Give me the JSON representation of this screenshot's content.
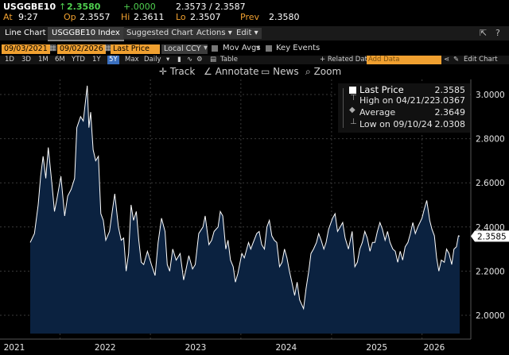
{
  "quote": {
    "ticker": "USGGBE10",
    "arrow": "↑",
    "last": "2.3580",
    "change": "+.0000",
    "bid_ask": "2.3573 / 2.3587",
    "time_label": "At",
    "time": "9:27",
    "open_label": "Op",
    "open": "2.3557",
    "high_label": "Hi",
    "high": "2.3611",
    "low_label": "Lo",
    "low": "2.3507",
    "prev_label": "Prev",
    "prev": "2.3580"
  },
  "menubar": {
    "chart_type": "Line Chart",
    "security": "USGGBE10 Index",
    "suggested": "Suggested Charts",
    "actions": "Actions",
    "edit": "Edit"
  },
  "inputs": {
    "start_date": "09/03/2021",
    "end_date": "09/02/2026",
    "field": "Last Price",
    "currency": "Local CCY",
    "mov_avgs": "Mov Avgs",
    "key_events": "Key Events"
  },
  "range": {
    "options": [
      "1D",
      "3D",
      "1M",
      "6M",
      "YTD",
      "1Y",
      "5Y",
      "Max"
    ],
    "selected": "5Y",
    "frequency": "Daily",
    "table": "Table",
    "related": "+ Related Dat",
    "add_data_placeholder": "Add Data",
    "edit_chart": "Edit Chart"
  },
  "tools": {
    "track": "Track",
    "annotate": "Annotate",
    "news": "News",
    "zoom": "Zoom"
  },
  "legend": {
    "last_label": "Last Price",
    "last_value": "2.3585",
    "high_label": "High on 04/21/22",
    "high_value": "3.0367",
    "avg_label": "Average",
    "avg_value": "2.3649",
    "low_label": "Low on 09/10/24",
    "low_value": "2.0308"
  },
  "colors": {
    "line": "#ffffff",
    "area": "#0b2240",
    "accent": "#f0a030",
    "up": "#4fd04f"
  },
  "chart_data": {
    "type": "area",
    "title": "",
    "ylim": [
      1.9,
      3.05
    ],
    "yticks": [
      "3.0000",
      "2.8000",
      "2.6000",
      "2.4000",
      "2.2000",
      "2.0000"
    ],
    "xticks": [
      "2021",
      "2022",
      "2023",
      "2024",
      "2025",
      "2026"
    ],
    "last_value_label": "2.3585",
    "grid": true,
    "series": [
      {
        "values": [
          [
            "2021-09-03",
            2.33
          ],
          [
            "2021-09-20",
            2.37
          ],
          [
            "2021-10-05",
            2.5
          ],
          [
            "2021-10-15",
            2.63
          ],
          [
            "2021-10-25",
            2.72
          ],
          [
            "2021-11-05",
            2.62
          ],
          [
            "2021-11-15",
            2.76
          ],
          [
            "2021-12-01",
            2.58
          ],
          [
            "2021-12-10",
            2.47
          ],
          [
            "2021-12-20",
            2.53
          ],
          [
            "2022-01-05",
            2.63
          ],
          [
            "2022-01-20",
            2.45
          ],
          [
            "2022-02-01",
            2.54
          ],
          [
            "2022-02-15",
            2.57
          ],
          [
            "2022-03-01",
            2.62
          ],
          [
            "2022-03-10",
            2.85
          ],
          [
            "2022-03-25",
            2.9
          ],
          [
            "2022-04-05",
            2.88
          ],
          [
            "2022-04-21",
            3.04
          ],
          [
            "2022-04-28",
            2.85
          ],
          [
            "2022-05-05",
            2.92
          ],
          [
            "2022-05-15",
            2.75
          ],
          [
            "2022-05-25",
            2.7
          ],
          [
            "2022-06-05",
            2.72
          ],
          [
            "2022-06-15",
            2.46
          ],
          [
            "2022-06-25",
            2.43
          ],
          [
            "2022-07-05",
            2.34
          ],
          [
            "2022-07-20",
            2.38
          ],
          [
            "2022-08-01",
            2.48
          ],
          [
            "2022-08-10",
            2.55
          ],
          [
            "2022-08-25",
            2.4
          ],
          [
            "2022-09-05",
            2.34
          ],
          [
            "2022-09-15",
            2.35
          ],
          [
            "2022-09-25",
            2.2
          ],
          [
            "2022-10-05",
            2.28
          ],
          [
            "2022-10-15",
            2.5
          ],
          [
            "2022-10-25",
            2.43
          ],
          [
            "2022-11-05",
            2.47
          ],
          [
            "2022-11-15",
            2.34
          ],
          [
            "2022-11-25",
            2.24
          ],
          [
            "2022-12-05",
            2.23
          ],
          [
            "2022-12-20",
            2.29
          ],
          [
            "2023-01-05",
            2.23
          ],
          [
            "2023-01-20",
            2.18
          ],
          [
            "2023-02-01",
            2.33
          ],
          [
            "2023-02-15",
            2.44
          ],
          [
            "2023-03-01",
            2.38
          ],
          [
            "2023-03-10",
            2.23
          ],
          [
            "2023-03-20",
            2.2
          ],
          [
            "2023-04-01",
            2.3
          ],
          [
            "2023-04-15",
            2.25
          ],
          [
            "2023-05-01",
            2.28
          ],
          [
            "2023-05-15",
            2.16
          ],
          [
            "2023-05-25",
            2.21
          ],
          [
            "2023-06-05",
            2.27
          ],
          [
            "2023-06-20",
            2.21
          ],
          [
            "2023-07-01",
            2.23
          ],
          [
            "2023-07-15",
            2.37
          ],
          [
            "2023-08-01",
            2.4
          ],
          [
            "2023-08-10",
            2.45
          ],
          [
            "2023-08-25",
            2.32
          ],
          [
            "2023-09-05",
            2.34
          ],
          [
            "2023-09-15",
            2.38
          ],
          [
            "2023-10-01",
            2.4
          ],
          [
            "2023-10-10",
            2.47
          ],
          [
            "2023-10-20",
            2.45
          ],
          [
            "2023-11-01",
            2.3
          ],
          [
            "2023-11-10",
            2.34
          ],
          [
            "2023-11-20",
            2.25
          ],
          [
            "2023-12-01",
            2.22
          ],
          [
            "2023-12-10",
            2.15
          ],
          [
            "2023-12-20",
            2.19
          ],
          [
            "2024-01-05",
            2.28
          ],
          [
            "2024-01-15",
            2.26
          ],
          [
            "2024-02-01",
            2.33
          ],
          [
            "2024-02-10",
            2.3
          ],
          [
            "2024-02-20",
            2.33
          ],
          [
            "2024-03-05",
            2.37
          ],
          [
            "2024-03-15",
            2.38
          ],
          [
            "2024-03-25",
            2.32
          ],
          [
            "2024-04-05",
            2.3
          ],
          [
            "2024-04-15",
            2.4
          ],
          [
            "2024-04-25",
            2.43
          ],
          [
            "2024-05-05",
            2.36
          ],
          [
            "2024-05-15",
            2.34
          ],
          [
            "2024-05-25",
            2.33
          ],
          [
            "2024-06-05",
            2.22
          ],
          [
            "2024-06-15",
            2.24
          ],
          [
            "2024-06-25",
            2.3
          ],
          [
            "2024-07-05",
            2.26
          ],
          [
            "2024-07-15",
            2.2
          ],
          [
            "2024-07-25",
            2.15
          ],
          [
            "2024-08-05",
            2.09
          ],
          [
            "2024-08-15",
            2.15
          ],
          [
            "2024-08-25",
            2.07
          ],
          [
            "2024-09-10",
            2.03
          ],
          [
            "2024-09-20",
            2.12
          ],
          [
            "2024-10-01",
            2.2
          ],
          [
            "2024-10-10",
            2.28
          ],
          [
            "2024-10-20",
            2.3
          ],
          [
            "2024-11-01",
            2.33
          ],
          [
            "2024-11-10",
            2.37
          ],
          [
            "2024-11-20",
            2.34
          ],
          [
            "2024-12-01",
            2.3
          ],
          [
            "2024-12-10",
            2.33
          ],
          [
            "2024-12-20",
            2.39
          ],
          [
            "2025-01-05",
            2.44
          ],
          [
            "2025-01-15",
            2.46
          ],
          [
            "2025-01-25",
            2.38
          ],
          [
            "2025-02-05",
            2.4
          ],
          [
            "2025-02-15",
            2.42
          ],
          [
            "2025-02-25",
            2.35
          ],
          [
            "2025-03-10",
            2.3
          ],
          [
            "2025-03-25",
            2.38
          ],
          [
            "2025-04-05",
            2.22
          ],
          [
            "2025-04-15",
            2.24
          ],
          [
            "2025-04-25",
            2.3
          ],
          [
            "2025-05-05",
            2.33
          ],
          [
            "2025-05-15",
            2.38
          ],
          [
            "2025-05-25",
            2.35
          ],
          [
            "2025-06-05",
            2.29
          ],
          [
            "2025-06-15",
            2.33
          ],
          [
            "2025-06-25",
            2.33
          ],
          [
            "2025-07-05",
            2.38
          ],
          [
            "2025-07-15",
            2.42
          ],
          [
            "2025-07-25",
            2.39
          ],
          [
            "2025-08-05",
            2.34
          ],
          [
            "2025-08-15",
            2.38
          ],
          [
            "2025-08-25",
            2.33
          ],
          [
            "2025-09-05",
            2.3
          ],
          [
            "2025-09-15",
            2.29
          ],
          [
            "2025-09-25",
            2.24
          ],
          [
            "2025-10-05",
            2.29
          ],
          [
            "2025-10-15",
            2.25
          ],
          [
            "2025-10-25",
            2.31
          ],
          [
            "2025-11-05",
            2.33
          ],
          [
            "2025-11-15",
            2.37
          ],
          [
            "2025-11-25",
            2.42
          ],
          [
            "2025-12-05",
            2.37
          ],
          [
            "2025-12-15",
            2.4
          ],
          [
            "2026-01-01",
            2.44
          ],
          [
            "2026-01-10",
            2.48
          ],
          [
            "2026-01-20",
            2.52
          ],
          [
            "2026-02-01",
            2.43
          ],
          [
            "2026-02-10",
            2.39
          ],
          [
            "2026-02-20",
            2.36
          ],
          [
            "2026-03-01",
            2.26
          ],
          [
            "2026-03-10",
            2.2
          ],
          [
            "2026-03-20",
            2.25
          ],
          [
            "2026-04-01",
            2.24
          ],
          [
            "2026-04-10",
            2.3
          ],
          [
            "2026-04-20",
            2.28
          ],
          [
            "2026-05-01",
            2.23
          ],
          [
            "2026-05-10",
            2.3
          ],
          [
            "2026-05-20",
            2.31
          ],
          [
            "2026-05-28",
            2.36
          ],
          [
            "2026-06-02",
            2.3585
          ]
        ]
      }
    ]
  }
}
